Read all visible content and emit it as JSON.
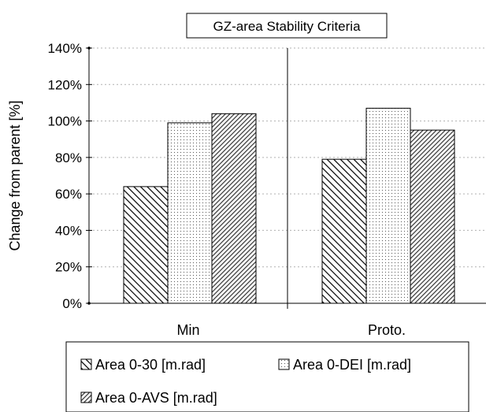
{
  "chart_data": {
    "type": "bar",
    "title": "GZ-area Stability Criteria",
    "xlabel": "",
    "ylabel": "Change from parent [%]",
    "categories": [
      "Min",
      "Proto."
    ],
    "series": [
      {
        "name": "Area 0-30 [m.rad]",
        "values": [
          64,
          79
        ],
        "pattern": "diagonal-dense"
      },
      {
        "name": "Area 0-DEI [m.rad]",
        "values": [
          99,
          107
        ],
        "pattern": "dots"
      },
      {
        "name": "Area 0-AVS [m.rad]",
        "values": [
          104,
          95
        ],
        "pattern": "diagonal-wide"
      }
    ],
    "ylim": [
      0,
      140
    ],
    "yticks": [
      0,
      20,
      40,
      60,
      80,
      100,
      120,
      140
    ],
    "ytick_labels": [
      "0%",
      "20%",
      "40%",
      "60%",
      "80%",
      "100%",
      "120%",
      "140%"
    ],
    "grid": "horizontal dotted",
    "legend_position": "bottom",
    "colors": {
      "bar_stroke": "#000000",
      "hatch": "#000000",
      "background": "#ffffff",
      "grid": "#b0b0b0"
    }
  }
}
